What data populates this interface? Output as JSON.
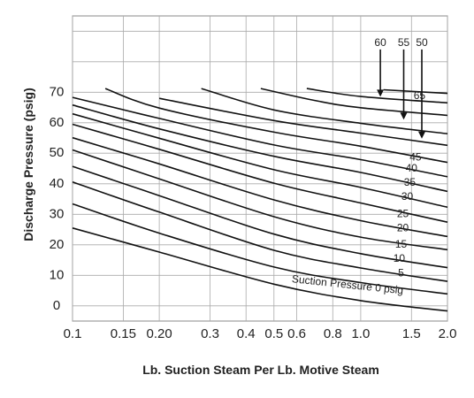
{
  "chart_data": {
    "type": "line",
    "xlabel": "Lb. Suction Steam Per Lb. Motive Steam",
    "ylabel": "Discharge Pressure (psig)",
    "x_scale": "log",
    "xlim": [
      0.1,
      2.0
    ],
    "ylim": [
      -5,
      95
    ],
    "grid": true,
    "x_ticks": [
      {
        "value": 0.1,
        "label": "0.1"
      },
      {
        "value": 0.15,
        "label": "0.15"
      },
      {
        "value": 0.2,
        "label": "0.20"
      },
      {
        "value": 0.3,
        "label": "0.3"
      },
      {
        "value": 0.4,
        "label": "0.4"
      },
      {
        "value": 0.5,
        "label": "0.5"
      },
      {
        "value": 0.6,
        "label": "0.6"
      },
      {
        "value": 0.8,
        "label": "0.8"
      },
      {
        "value": 1.0,
        "label": "1.0"
      },
      {
        "value": 1.5,
        "label": "1.5"
      },
      {
        "value": 2.0,
        "label": "2.0"
      }
    ],
    "y_ticks": [
      {
        "value": 0,
        "label": "0"
      },
      {
        "value": 10,
        "label": "10"
      },
      {
        "value": 20,
        "label": "20"
      },
      {
        "value": 30,
        "label": "30"
      },
      {
        "value": 40,
        "label": "40"
      },
      {
        "value": 50,
        "label": "50"
      },
      {
        "value": 60,
        "label": "60"
      },
      {
        "value": 70,
        "label": "70"
      }
    ],
    "x_grid_values": [
      0.1,
      0.15,
      0.2,
      0.3,
      0.4,
      0.5,
      0.6,
      0.8,
      1.0,
      1.5,
      2.0
    ],
    "y_grid_values": [
      0,
      10,
      20,
      30,
      40,
      50,
      60,
      70,
      80,
      90
    ],
    "series": [
      {
        "name": "0",
        "x": [
          0.1,
          0.2,
          0.5,
          1.0,
          2.0
        ],
        "y": [
          25.5,
          17.6,
          7.1,
          1.7,
          -1.7
        ]
      },
      {
        "name": "5",
        "x": [
          0.1,
          0.2,
          0.5,
          1.0,
          2.0
        ],
        "y": [
          33.4,
          23.8,
          12.7,
          7.6,
          3.9
        ]
      },
      {
        "name": "10",
        "x": [
          0.1,
          0.2,
          0.5,
          1.0,
          2.0
        ],
        "y": [
          40.6,
          30.7,
          18.2,
          12.4,
          8.0
        ]
      },
      {
        "name": "15",
        "x": [
          0.1,
          0.2,
          0.5,
          1.0,
          2.0
        ],
        "y": [
          45.7,
          36.1,
          23.5,
          17.1,
          12.5
        ]
      },
      {
        "name": "20",
        "x": [
          0.1,
          0.2,
          0.5,
          1.0,
          2.0
        ],
        "y": [
          51.1,
          41.6,
          29.2,
          22.5,
          18.4
        ]
      },
      {
        "name": "25",
        "x": [
          0.1,
          0.2,
          0.5,
          1.0,
          2.0
        ],
        "y": [
          55.1,
          46.5,
          34.7,
          27.9,
          22.7
        ]
      },
      {
        "name": "30",
        "x": [
          0.1,
          0.2,
          0.5,
          1.0,
          2.0
        ],
        "y": [
          59.5,
          51.3,
          40.2,
          33.7,
          27.4
        ]
      },
      {
        "name": "35",
        "x": [
          0.1,
          0.2,
          0.5,
          1.0,
          2.0
        ],
        "y": [
          62.9,
          54.9,
          44.6,
          38.8,
          32.3
        ]
      },
      {
        "name": "40",
        "x": [
          0.1,
          0.2,
          0.5,
          1.0,
          2.0
        ],
        "y": [
          65.8,
          58.0,
          49.0,
          43.7,
          37.5
        ]
      },
      {
        "name": "45",
        "x": [
          0.1,
          0.2,
          0.5,
          1.0,
          2.0
        ],
        "y": [
          68.3,
          61.4,
          52.7,
          47.9,
          42.3
        ]
      },
      {
        "name": "50",
        "x": [
          0.13,
          0.2,
          0.5,
          1.0,
          2.0
        ],
        "y": [
          71.2,
          64.8,
          56.9,
          52.3,
          47.0
        ]
      },
      {
        "name": "55",
        "x": [
          0.2,
          0.5,
          1.0,
          2.0
        ],
        "y": [
          68.0,
          60.7,
          56.6,
          52.6
        ]
      },
      {
        "name": "60",
        "x": [
          0.28,
          0.5,
          1.0,
          2.0
        ],
        "y": [
          71.2,
          64.2,
          59.8,
          56.4
        ]
      },
      {
        "name": "65",
        "x": [
          0.45,
          0.7,
          1.0,
          2.0
        ],
        "y": [
          71.2,
          67.2,
          64.9,
          62.4
        ]
      },
      {
        "name": "",
        "x": [
          0.65,
          1.0,
          2.0
        ],
        "y": [
          71.2,
          68.6,
          66.5
        ]
      },
      {
        "name": "",
        "x": [
          1.2,
          2.0
        ],
        "y": [
          70.8,
          69.6
        ]
      }
    ],
    "annotations": {
      "curve_labels": [
        {
          "text": "65",
          "x": 1.6,
          "y": 68.7,
          "rotate": 0
        },
        {
          "text": "45",
          "x": 1.55,
          "y": 48.6,
          "rotate": 0
        },
        {
          "text": "40",
          "x": 1.5,
          "y": 44.9,
          "rotate": 0
        },
        {
          "text": "35",
          "x": 1.48,
          "y": 40.3,
          "rotate": 0
        },
        {
          "text": "30",
          "x": 1.45,
          "y": 35.7,
          "rotate": 0
        },
        {
          "text": "25",
          "x": 1.4,
          "y": 30.0,
          "rotate": 0
        },
        {
          "text": "20",
          "x": 1.4,
          "y": 25.3,
          "rotate": 0
        },
        {
          "text": "15",
          "x": 1.38,
          "y": 20.0,
          "rotate": 0
        },
        {
          "text": "10",
          "x": 1.36,
          "y": 15.3,
          "rotate": 0
        },
        {
          "text": "5",
          "x": 1.38,
          "y": 10.6,
          "rotate": 0
        },
        {
          "text": "Suction Pressure 0 psig",
          "x": 0.9,
          "y": 6.7,
          "rotate": 6
        }
      ],
      "arrows": [
        {
          "label": "60",
          "x": 1.17,
          "y_top": 84.0,
          "y_tip": 68.5
        },
        {
          "label": "55",
          "x": 1.41,
          "y_top": 84.0,
          "y_tip": 61.0
        },
        {
          "label": "50",
          "x": 1.63,
          "y_top": 84.0,
          "y_tip": 54.8
        }
      ]
    }
  }
}
